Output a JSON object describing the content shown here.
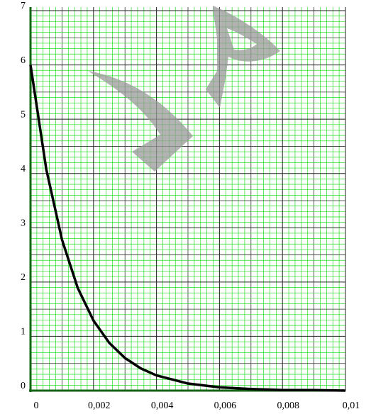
{
  "chart_data": {
    "type": "line",
    "x": [
      0,
      0.0005,
      0.001,
      0.0015,
      0.002,
      0.0025,
      0.003,
      0.0035,
      0.004,
      0.005,
      0.006,
      0.007,
      0.008,
      0.009,
      0.01
    ],
    "values": [
      6,
      4.08,
      2.78,
      1.89,
      1.29,
      0.88,
      0.6,
      0.41,
      0.28,
      0.13,
      0.06,
      0.03,
      0.01,
      0.01,
      0
    ],
    "color": "#000000",
    "xlim": [
      0,
      0.01
    ],
    "xticks": [
      0,
      {
        "value": 0.002,
        "label": "0,002"
      },
      {
        "value": 0.004,
        "label": "0,004"
      },
      {
        "value": 0.006,
        "label": "0,006"
      },
      {
        "value": 0.008,
        "label": "0,008"
      },
      {
        "value": 0.01,
        "label": "0,01"
      }
    ],
    "ylim": [
      0,
      7
    ],
    "yticks": [
      0,
      1,
      2,
      3,
      4,
      5,
      6,
      7
    ],
    "grid": true,
    "grid_color": "#22dd22"
  }
}
